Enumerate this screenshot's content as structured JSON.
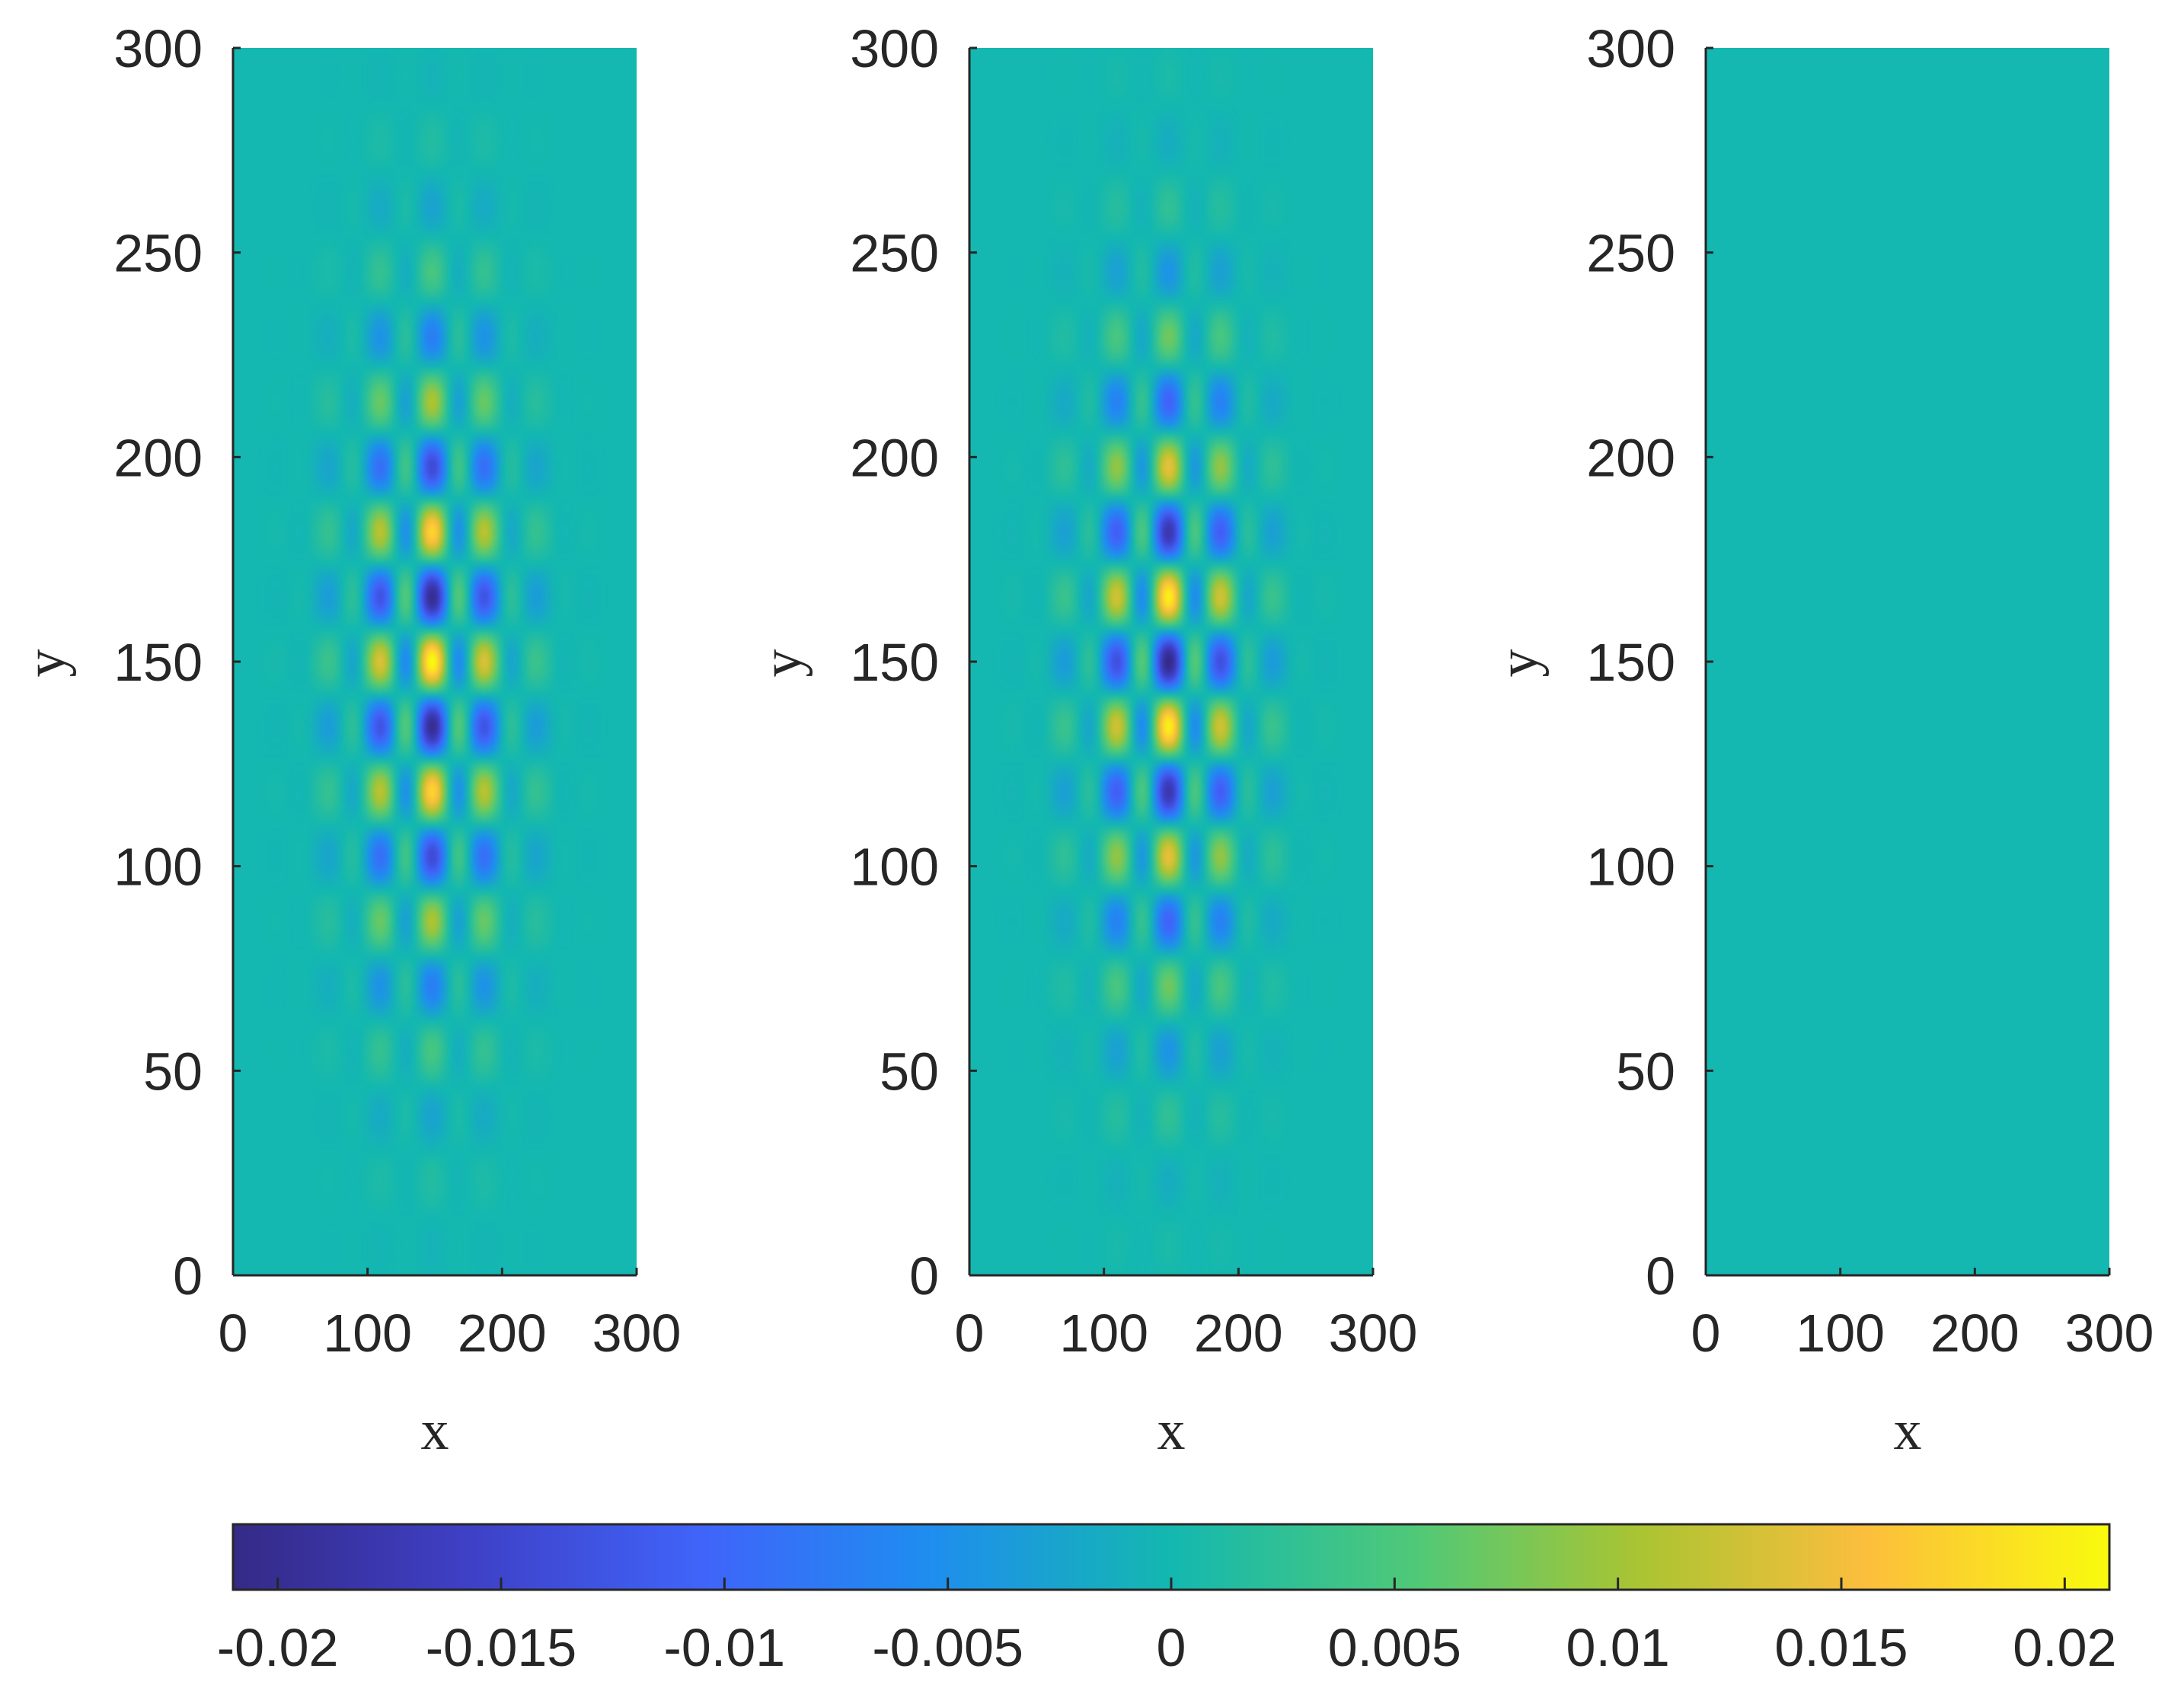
{
  "chart_data": [
    {
      "type": "heatmap",
      "panel": "left",
      "xlabel": "x",
      "ylabel": "y",
      "xlim": [
        0,
        300
      ],
      "ylim": [
        0,
        300
      ],
      "x_ticks": [
        "0",
        "100",
        "200",
        "300"
      ],
      "y_ticks": [
        "0",
        "50",
        "100",
        "150",
        "200",
        "250",
        "300"
      ],
      "field": {
        "description_type": "oscillatory lattice pattern",
        "center": [
          148,
          150
        ],
        "amplitude": 0.021,
        "x_half_width": 95,
        "y_half_width": 130,
        "x_period": 40,
        "y_period": 32,
        "phase": 0
      }
    },
    {
      "type": "heatmap",
      "panel": "middle",
      "xlabel": "x",
      "ylabel": "y",
      "xlim": [
        0,
        300
      ],
      "ylim": [
        0,
        300
      ],
      "x_ticks": [
        "0",
        "100",
        "200",
        "300"
      ],
      "y_ticks": [
        "0",
        "50",
        "100",
        "150",
        "200",
        "250",
        "300"
      ],
      "field": {
        "description_type": "oscillatory lattice pattern",
        "center": [
          148,
          150
        ],
        "amplitude": 0.021,
        "x_half_width": 95,
        "y_half_width": 130,
        "x_period": 40,
        "y_period": 32,
        "phase": 3.14159
      }
    },
    {
      "type": "heatmap",
      "panel": "right",
      "xlabel": "x",
      "ylabel": "y",
      "xlim": [
        0,
        300
      ],
      "ylim": [
        0,
        300
      ],
      "x_ticks": [
        "0",
        "100",
        "200",
        "300"
      ],
      "y_ticks": [
        "0",
        "50",
        "100",
        "150",
        "200",
        "250",
        "300"
      ],
      "field": {
        "description_type": "uniform zero",
        "amplitude": 0
      }
    }
  ],
  "colorbar": {
    "limits": [
      -0.021,
      0.021
    ],
    "ticks": [
      -0.02,
      -0.015,
      -0.01,
      -0.005,
      0,
      0.005,
      0.01,
      0.015,
      0.02
    ],
    "tick_labels": [
      "-0.02",
      "-0.015",
      "-0.01",
      "-0.005",
      "0",
      "0.005",
      "0.01",
      "0.015",
      "0.02"
    ],
    "colormap": "parula"
  }
}
